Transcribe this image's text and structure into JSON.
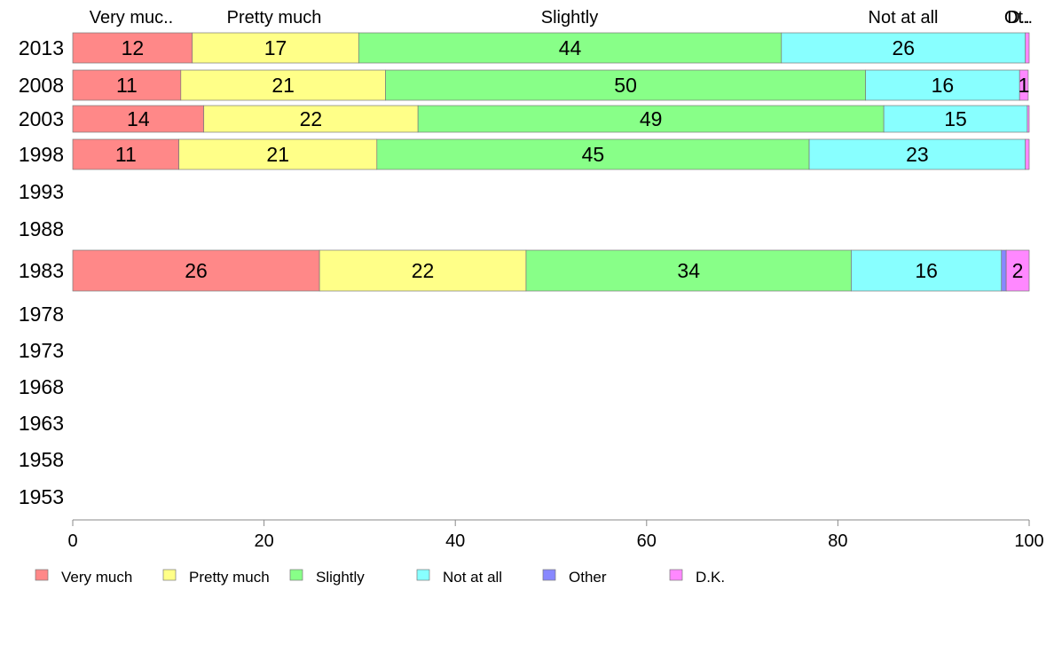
{
  "chart_data": {
    "type": "bar",
    "orientation": "horizontal",
    "stacked": true,
    "categories": [
      "2013",
      "2008",
      "2003",
      "1998",
      "1993",
      "1988",
      "1983",
      "1978",
      "1973",
      "1968",
      "1963",
      "1958",
      "1953"
    ],
    "series": [
      {
        "name": "Very much",
        "color": "#ff8888",
        "values": [
          12.5,
          11.3,
          13.7,
          11.1,
          null,
          null,
          25.8,
          null,
          null,
          null,
          null,
          null,
          null
        ],
        "labels": [
          "12",
          "11",
          "14",
          "11",
          "",
          "",
          "26",
          "",
          "",
          "",
          "",
          "",
          ""
        ]
      },
      {
        "name": "Pretty much",
        "color": "#ffff88",
        "values": [
          17.4,
          21.4,
          22.4,
          20.7,
          null,
          null,
          21.6,
          null,
          null,
          null,
          null,
          null,
          null
        ],
        "labels": [
          "17",
          "21",
          "22",
          "21",
          "",
          "",
          "22",
          "",
          "",
          "",
          "",
          "",
          ""
        ]
      },
      {
        "name": "Slightly",
        "color": "#88ff88",
        "values": [
          44.2,
          50.2,
          48.7,
          45.2,
          null,
          null,
          34.0,
          null,
          null,
          null,
          null,
          null,
          null
        ],
        "labels": [
          "44",
          "50",
          "49",
          "45",
          "",
          "",
          "34",
          "",
          "",
          "",
          "",
          "",
          ""
        ]
      },
      {
        "name": "Not at all",
        "color": "#88ffff",
        "values": [
          25.5,
          16.1,
          15.0,
          22.6,
          null,
          null,
          15.7,
          null,
          null,
          null,
          null,
          null,
          null
        ],
        "labels": [
          "26",
          "16",
          "15",
          "23",
          "",
          "",
          "16",
          "",
          "",
          "",
          "",
          "",
          ""
        ]
      },
      {
        "name": "Other",
        "color": "#8888ff",
        "values": [
          0,
          0,
          0,
          0,
          null,
          null,
          0.5,
          null,
          null,
          null,
          null,
          null,
          null
        ],
        "labels": [
          "",
          "",
          "",
          "",
          "",
          "",
          "",
          "",
          "",
          "",
          "",
          "",
          ""
        ]
      },
      {
        "name": "D.K.",
        "color": "#ff88ff",
        "values": [
          0.4,
          0.9,
          0.2,
          0.4,
          null,
          null,
          2.4,
          null,
          null,
          null,
          null,
          null,
          null
        ],
        "labels": [
          "",
          "1",
          "",
          "",
          "",
          "",
          "2",
          "",
          "",
          "",
          "",
          "",
          ""
        ]
      }
    ],
    "top_labels": [
      "Very muc..",
      "Pretty much",
      "Slightly",
      "Not at all",
      "Ot..",
      "D.."
    ],
    "xlim": [
      0,
      100
    ],
    "xticks": [
      0,
      20,
      40,
      60,
      80,
      100
    ],
    "grid": false,
    "legend_position": "bottom"
  }
}
